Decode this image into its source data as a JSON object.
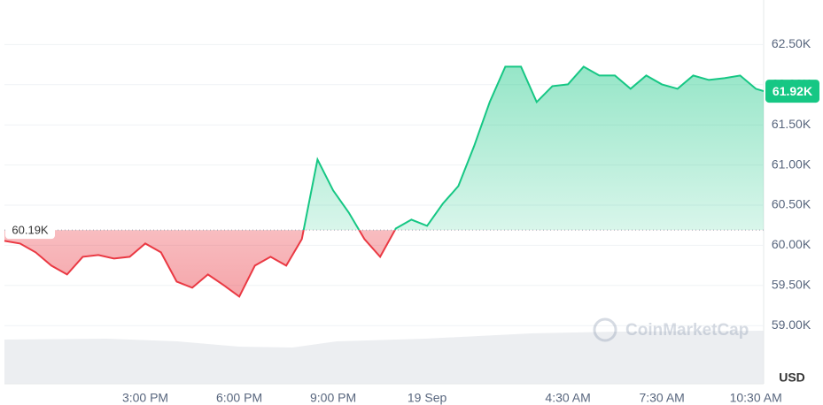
{
  "chart_data": {
    "type": "line",
    "x": [
      10.5,
      11,
      11.5,
      12,
      12.5,
      13,
      13.5,
      14,
      14.5,
      15,
      15.5,
      16,
      16.5,
      17,
      17.5,
      18,
      18.5,
      19,
      19.5,
      20,
      20.5,
      21,
      21.5,
      22,
      22.5,
      23,
      23.5,
      24,
      24.5,
      25,
      25.5,
      26,
      26.5,
      27,
      27.5,
      28,
      28.5,
      29,
      29.5,
      30,
      30.5,
      31,
      31.5,
      32,
      32.5,
      33,
      33.5,
      34,
      34.5,
      34.75
    ],
    "values": [
      60055,
      60022,
      59912,
      59747,
      59637,
      59857,
      59879,
      59835,
      59857,
      60022,
      59912,
      59548,
      59471,
      59637,
      59504,
      59361,
      59747,
      59857,
      59747,
      60077,
      61068,
      60683,
      60407,
      60077,
      59857,
      60209,
      60319,
      60242,
      60518,
      60738,
      61233,
      61784,
      62225,
      62225,
      61784,
      61982,
      62004,
      62225,
      62115,
      62115,
      61949,
      62115,
      62004,
      61949,
      62115,
      62060,
      62082,
      62115,
      61949,
      61920
    ],
    "up_color": "#16c784",
    "down_color": "#ea3943",
    "baseline": {
      "value": 60190,
      "label": "60.19K"
    },
    "last_price": {
      "value": 61920,
      "label": "61.92K"
    },
    "xlim": [
      10.5,
      34.75
    ],
    "xticks": [
      {
        "value": 15,
        "label": "3:00 PM"
      },
      {
        "value": 18,
        "label": "6:00 PM"
      },
      {
        "value": 21,
        "label": "9:00 PM"
      },
      {
        "value": 24,
        "label": "19 Sep"
      },
      {
        "value": 28.5,
        "label": "4:30 AM"
      },
      {
        "value": 31.5,
        "label": "7:30 AM"
      },
      {
        "value": 34.5,
        "label": "10:30 AM"
      }
    ],
    "ylim": [
      58500,
      63000
    ],
    "yticks": [
      {
        "value": 62500,
        "label": "62.50K"
      },
      {
        "value": 62000,
        "label": "62.00K"
      },
      {
        "value": 61500,
        "label": "61.50K"
      },
      {
        "value": 61000,
        "label": "61.00K"
      },
      {
        "value": 60500,
        "label": "60.50K"
      },
      {
        "value": 60000,
        "label": "60.00K"
      },
      {
        "value": 59500,
        "label": "59.50K"
      },
      {
        "value": 59000,
        "label": "59.00K"
      }
    ],
    "currency": "USD",
    "watermark": "CoinMarketCap"
  }
}
